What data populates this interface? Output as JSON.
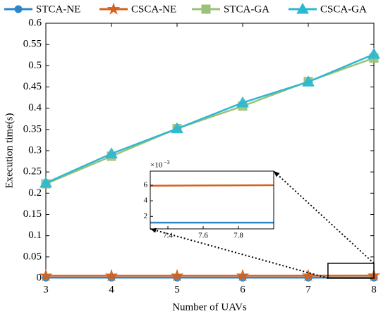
{
  "chart_data": {
    "type": "line",
    "xlabel": "Number of UAVs",
    "ylabel": "Execution time(s)",
    "x": [
      3,
      4,
      5,
      6,
      7,
      8
    ],
    "series": [
      {
        "name": "STCA-NE",
        "color": "#2e86c8",
        "marker": "circle",
        "values": [
          0.0012,
          0.0012,
          0.0012,
          0.0012,
          0.0012,
          0.0012
        ]
      },
      {
        "name": "CSCA-NE",
        "color": "#d4621e",
        "marker": "star",
        "values": [
          0.0058,
          0.0058,
          0.0058,
          0.0059,
          0.0059,
          0.006
        ]
      },
      {
        "name": "STCA-GA",
        "color": "#9cc17a",
        "marker": "square",
        "values": [
          0.222,
          0.287,
          0.352,
          0.405,
          0.463,
          0.518
        ]
      },
      {
        "name": "CSCA-GA",
        "color": "#2cb8d2",
        "marker": "triangle",
        "values": [
          0.224,
          0.293,
          0.352,
          0.413,
          0.462,
          0.527
        ]
      }
    ],
    "xlim": [
      3,
      8
    ],
    "xticks": [
      3,
      4,
      5,
      6,
      7,
      8
    ],
    "ylim": [
      0,
      0.6
    ],
    "yticks": [
      0,
      0.05,
      0.1,
      0.15,
      0.2,
      0.25,
      0.3,
      0.35,
      0.4,
      0.45,
      0.5,
      0.55,
      0.6
    ],
    "legend": "top",
    "zoom_box_ylim": [
      0,
      0.035
    ],
    "inset": {
      "xlim": [
        7.3,
        8
      ],
      "xticks": [
        7.4,
        7.6,
        7.8
      ],
      "ylim": [
        0.0004,
        0.0078
      ],
      "yticks": [
        {
          "value": 0.002,
          "label": "2"
        },
        {
          "value": 0.004,
          "label": "4"
        },
        {
          "value": 0.006,
          "label": "6"
        }
      ],
      "offset_base": "×10",
      "offset_exponent": "−3",
      "series_indices": [
        0,
        1
      ]
    }
  }
}
